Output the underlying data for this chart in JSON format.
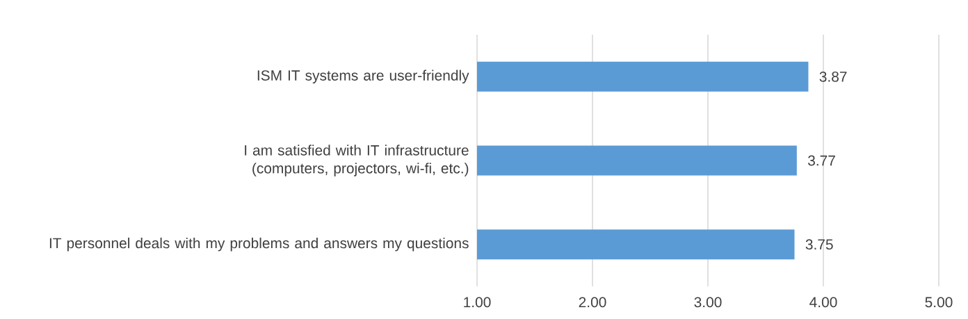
{
  "chart_data": {
    "type": "bar",
    "orientation": "horizontal",
    "categories": [
      "ISM IT systems are user-friendly",
      "I am satisfied with IT infrastructure (computers, projectors, wi-fi, etc.)",
      "IT personnel deals with my problems and answers my questions"
    ],
    "values": [
      3.87,
      3.77,
      3.75
    ],
    "color": "#5b9bd5",
    "xlim": [
      1,
      5
    ],
    "xticks": [
      {
        "value": 1,
        "label": "1.00"
      },
      {
        "value": 2,
        "label": "2.00"
      },
      {
        "value": 3,
        "label": "3.00"
      },
      {
        "value": 4,
        "label": "4.00"
      },
      {
        "value": 5,
        "label": "5.00"
      }
    ],
    "grid": "x",
    "data_labels": true
  }
}
